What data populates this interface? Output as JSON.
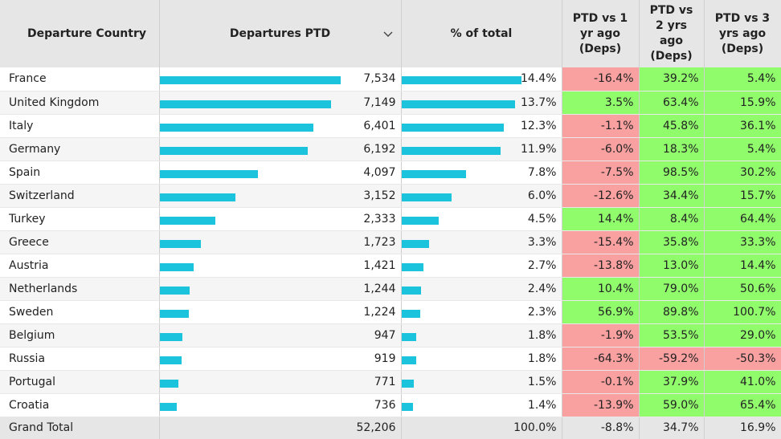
{
  "headers": {
    "country": "Departure Country",
    "departures": "Departures PTD",
    "pct_total": "% of total",
    "vs1": [
      "PTD vs 1",
      "yr ago",
      "(Deps)"
    ],
    "vs2": [
      "PTD vs",
      "2 yrs",
      "ago",
      "(Deps)"
    ],
    "vs3": [
      "PTD vs 3",
      "yrs ago",
      "(Deps)"
    ]
  },
  "sort_icon": "chevron-down-icon",
  "colors": {
    "bar": "#1cc3dc",
    "negative": "#f9a0a0",
    "positive": "#90fc6c",
    "header_bg": "#e6e6e6"
  },
  "rows": [
    {
      "country": "France",
      "departures": 7534,
      "departures_label": "7,534",
      "pct": 14.4,
      "pct_label": "14.4%",
      "vs1": "-16.4%",
      "vs2": "39.2%",
      "vs3": "5.4%"
    },
    {
      "country": "United Kingdom",
      "departures": 7149,
      "departures_label": "7,149",
      "pct": 13.7,
      "pct_label": "13.7%",
      "vs1": "3.5%",
      "vs2": "63.4%",
      "vs3": "15.9%"
    },
    {
      "country": "Italy",
      "departures": 6401,
      "departures_label": "6,401",
      "pct": 12.3,
      "pct_label": "12.3%",
      "vs1": "-1.1%",
      "vs2": "45.8%",
      "vs3": "36.1%"
    },
    {
      "country": "Germany",
      "departures": 6192,
      "departures_label": "6,192",
      "pct": 11.9,
      "pct_label": "11.9%",
      "vs1": "-6.0%",
      "vs2": "18.3%",
      "vs3": "5.4%"
    },
    {
      "country": "Spain",
      "departures": 4097,
      "departures_label": "4,097",
      "pct": 7.8,
      "pct_label": "7.8%",
      "vs1": "-7.5%",
      "vs2": "98.5%",
      "vs3": "30.2%"
    },
    {
      "country": "Switzerland",
      "departures": 3152,
      "departures_label": "3,152",
      "pct": 6.0,
      "pct_label": "6.0%",
      "vs1": "-12.6%",
      "vs2": "34.4%",
      "vs3": "15.7%"
    },
    {
      "country": "Turkey",
      "departures": 2333,
      "departures_label": "2,333",
      "pct": 4.5,
      "pct_label": "4.5%",
      "vs1": "14.4%",
      "vs2": "8.4%",
      "vs3": "64.4%"
    },
    {
      "country": "Greece",
      "departures": 1723,
      "departures_label": "1,723",
      "pct": 3.3,
      "pct_label": "3.3%",
      "vs1": "-15.4%",
      "vs2": "35.8%",
      "vs3": "33.3%"
    },
    {
      "country": "Austria",
      "departures": 1421,
      "departures_label": "1,421",
      "pct": 2.7,
      "pct_label": "2.7%",
      "vs1": "-13.8%",
      "vs2": "13.0%",
      "vs3": "14.4%"
    },
    {
      "country": "Netherlands",
      "departures": 1244,
      "departures_label": "1,244",
      "pct": 2.4,
      "pct_label": "2.4%",
      "vs1": "10.4%",
      "vs2": "79.0%",
      "vs3": "50.6%"
    },
    {
      "country": "Sweden",
      "departures": 1224,
      "departures_label": "1,224",
      "pct": 2.3,
      "pct_label": "2.3%",
      "vs1": "56.9%",
      "vs2": "89.8%",
      "vs3": "100.7%"
    },
    {
      "country": "Belgium",
      "departures": 947,
      "departures_label": "947",
      "pct": 1.8,
      "pct_label": "1.8%",
      "vs1": "-1.9%",
      "vs2": "53.5%",
      "vs3": "29.0%"
    },
    {
      "country": "Russia",
      "departures": 919,
      "departures_label": "919",
      "pct": 1.8,
      "pct_label": "1.8%",
      "vs1": "-64.3%",
      "vs2": "-59.2%",
      "vs3": "-50.3%"
    },
    {
      "country": "Portugal",
      "departures": 771,
      "departures_label": "771",
      "pct": 1.5,
      "pct_label": "1.5%",
      "vs1": "-0.1%",
      "vs2": "37.9%",
      "vs3": "41.0%"
    },
    {
      "country": "Croatia",
      "departures": 736,
      "departures_label": "736",
      "pct": 1.4,
      "pct_label": "1.4%",
      "vs1": "-13.9%",
      "vs2": "59.0%",
      "vs3": "65.4%"
    }
  ],
  "total": {
    "label": "Grand Total",
    "departures": "52,206",
    "pct": "100.0%",
    "vs1": "-8.8%",
    "vs2": "34.7%",
    "vs3": "16.9%"
  }
}
